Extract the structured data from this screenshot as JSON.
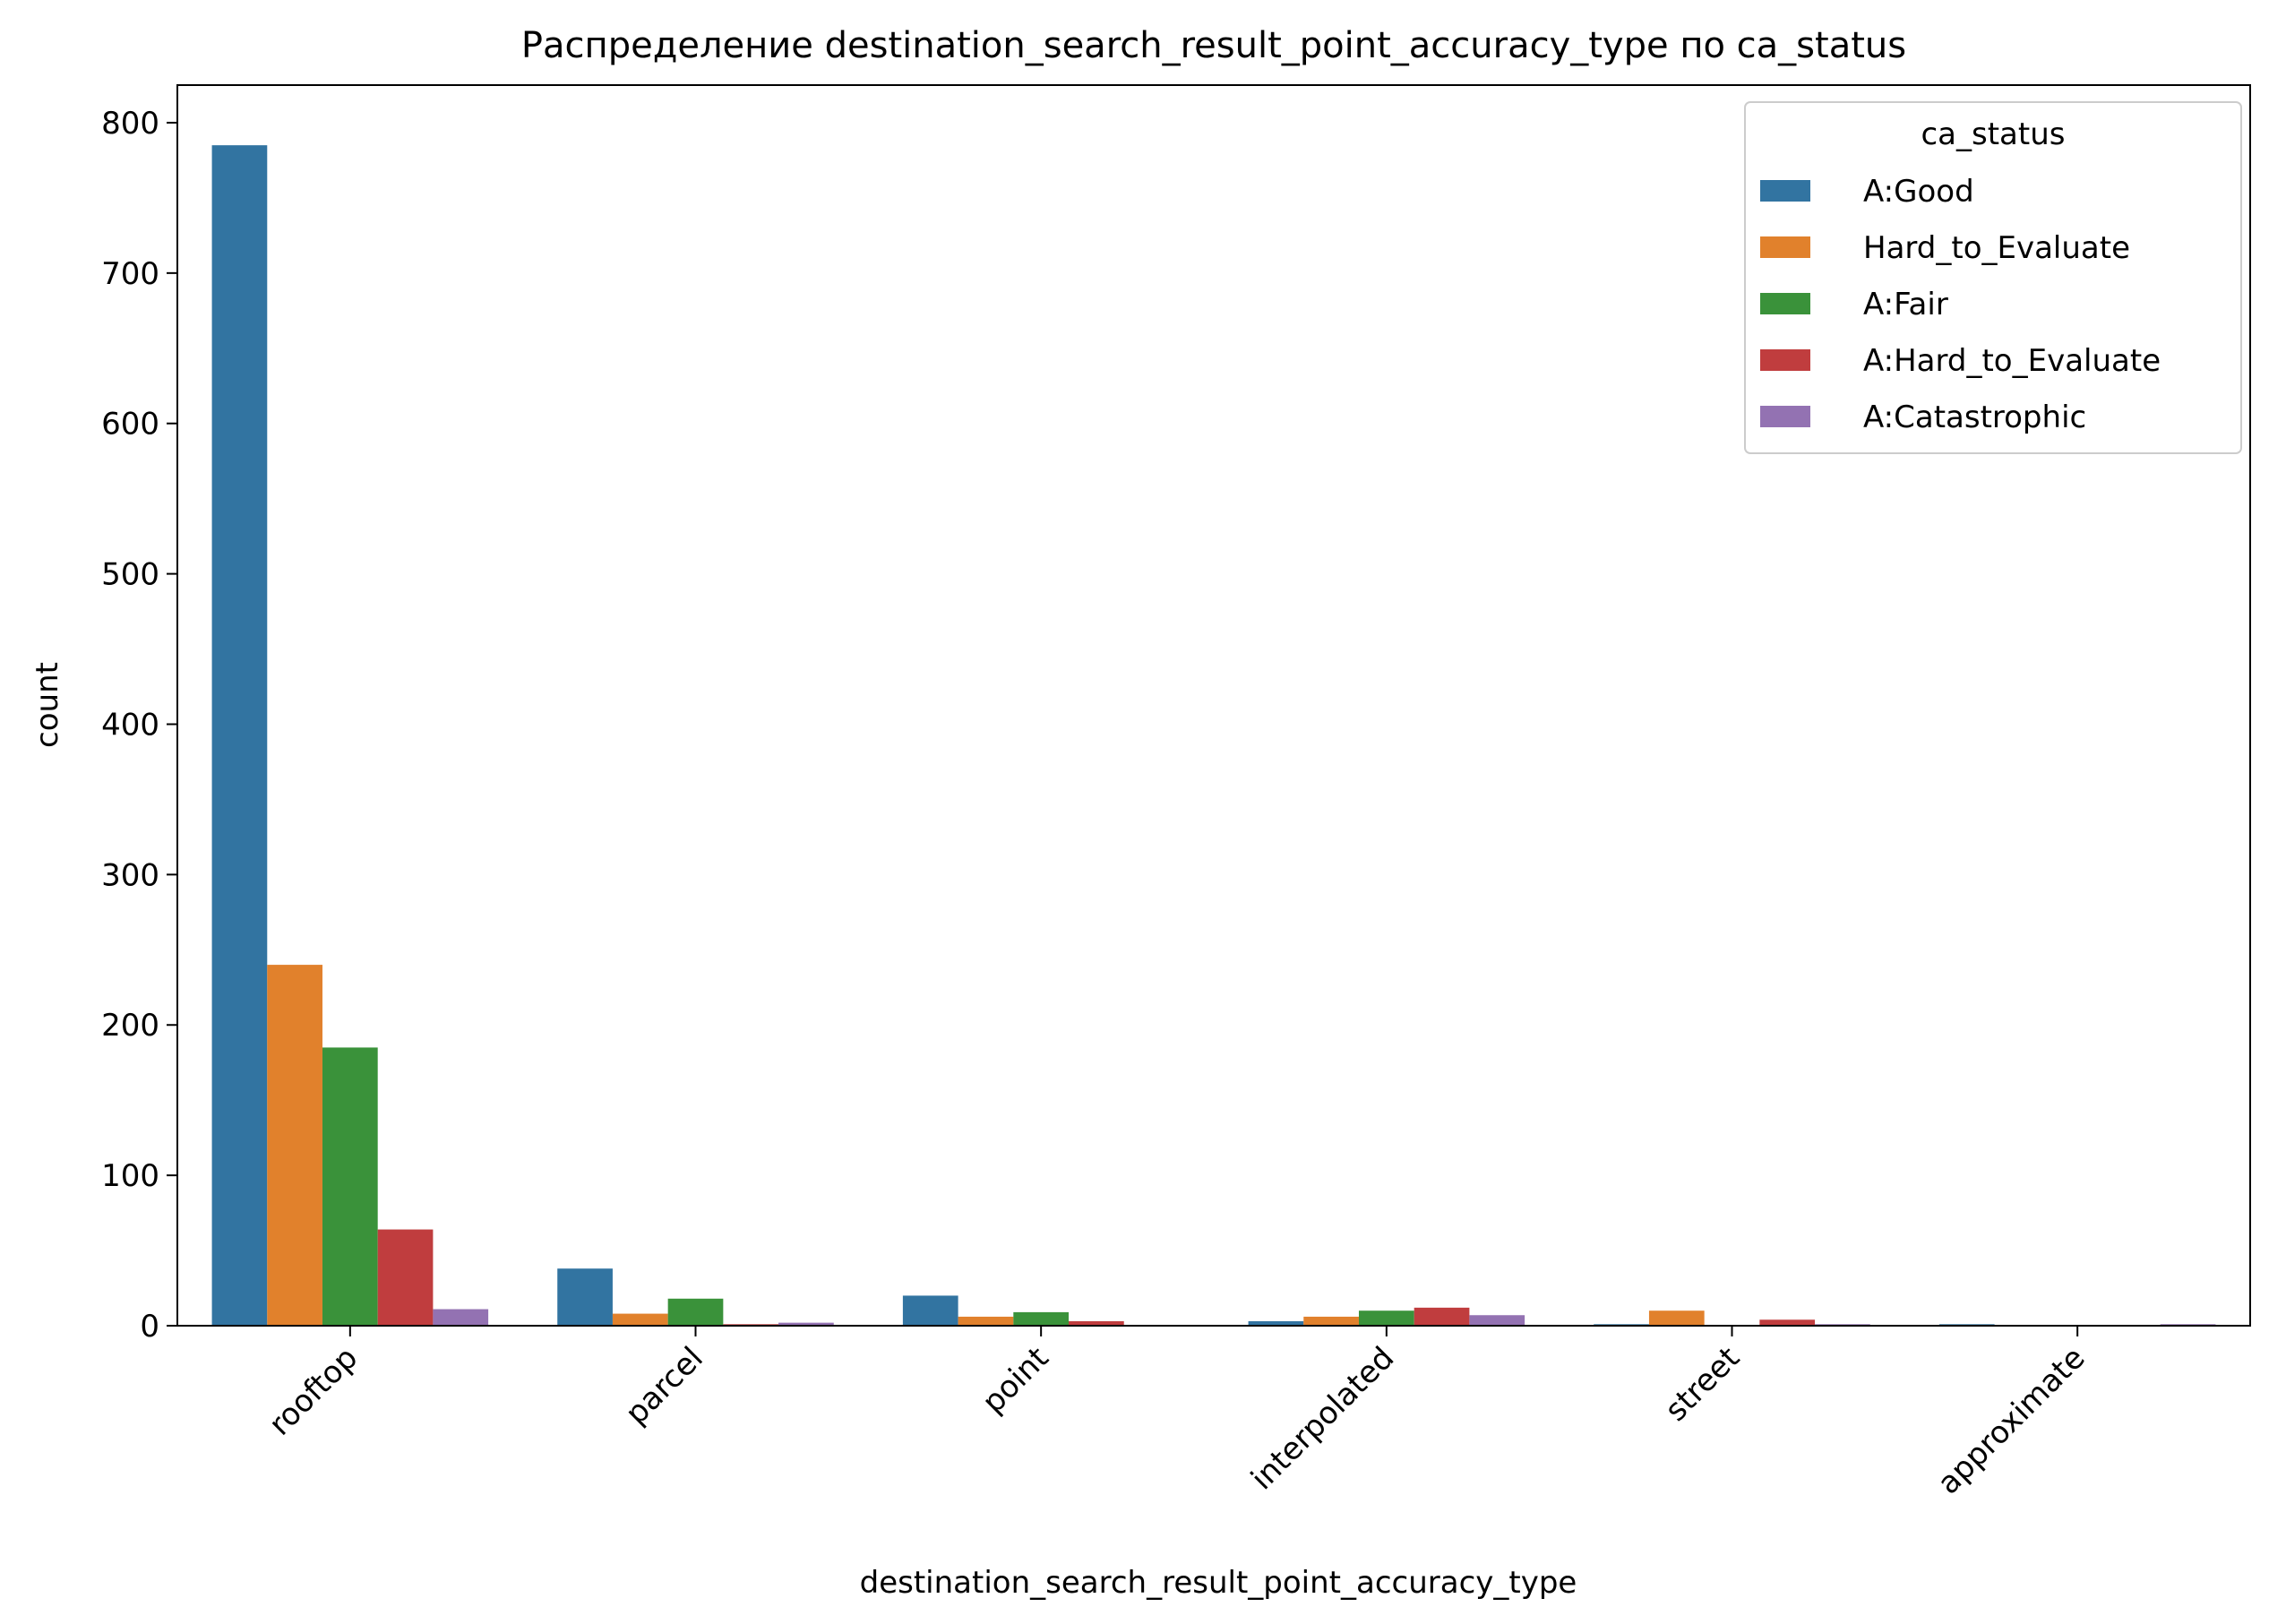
{
  "chart_data": {
    "type": "bar",
    "title": "Распределение destination_search_result_point_accuracy_type по ca_status",
    "xlabel": "destination_search_result_point_accuracy_type",
    "ylabel": "count",
    "categories": [
      "rooftop",
      "parcel",
      "point",
      "interpolated",
      "street",
      "approximate"
    ],
    "ylim": [
      0,
      825
    ],
    "yticks": [
      0,
      100,
      200,
      300,
      400,
      500,
      600,
      700,
      800
    ],
    "grid": false,
    "legend": {
      "title": "ca_status",
      "placement": "top-right"
    },
    "series": [
      {
        "name": "A:Good",
        "color": "#3274a1",
        "values": [
          785,
          38,
          20,
          3,
          1,
          1
        ]
      },
      {
        "name": "Hard_to_Evaluate",
        "color": "#e1812c",
        "values": [
          240,
          8,
          6,
          6,
          10,
          0
        ]
      },
      {
        "name": "A:Fair",
        "color": "#3a923a",
        "values": [
          185,
          18,
          9,
          10,
          0,
          0
        ]
      },
      {
        "name": "A:Hard_to_Evaluate",
        "color": "#c03d3e",
        "values": [
          64,
          1,
          3,
          12,
          4,
          0
        ]
      },
      {
        "name": "A:Catastrophic",
        "color": "#9372b2",
        "values": [
          11,
          2,
          0,
          7,
          1,
          1
        ]
      }
    ]
  }
}
